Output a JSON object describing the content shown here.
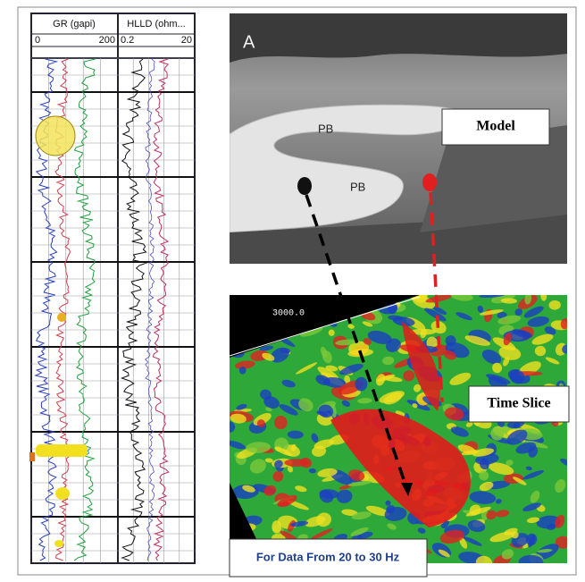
{
  "log_panel": {
    "tracks": [
      {
        "header": "GR (gapi)",
        "scale_min": "0",
        "scale_max": "200"
      },
      {
        "header": "HLLD (ohm...",
        "scale_min": "0.2",
        "scale_max": "20"
      }
    ]
  },
  "photo": {
    "panel_label": "A",
    "labels": [
      "PB",
      "PB"
    ]
  },
  "seismic": {
    "axis_label": "3000.0"
  },
  "callouts": {
    "model": "Model",
    "time_slice": "Time Slice",
    "frequency": "For Data From 20 to 30 Hz"
  }
}
